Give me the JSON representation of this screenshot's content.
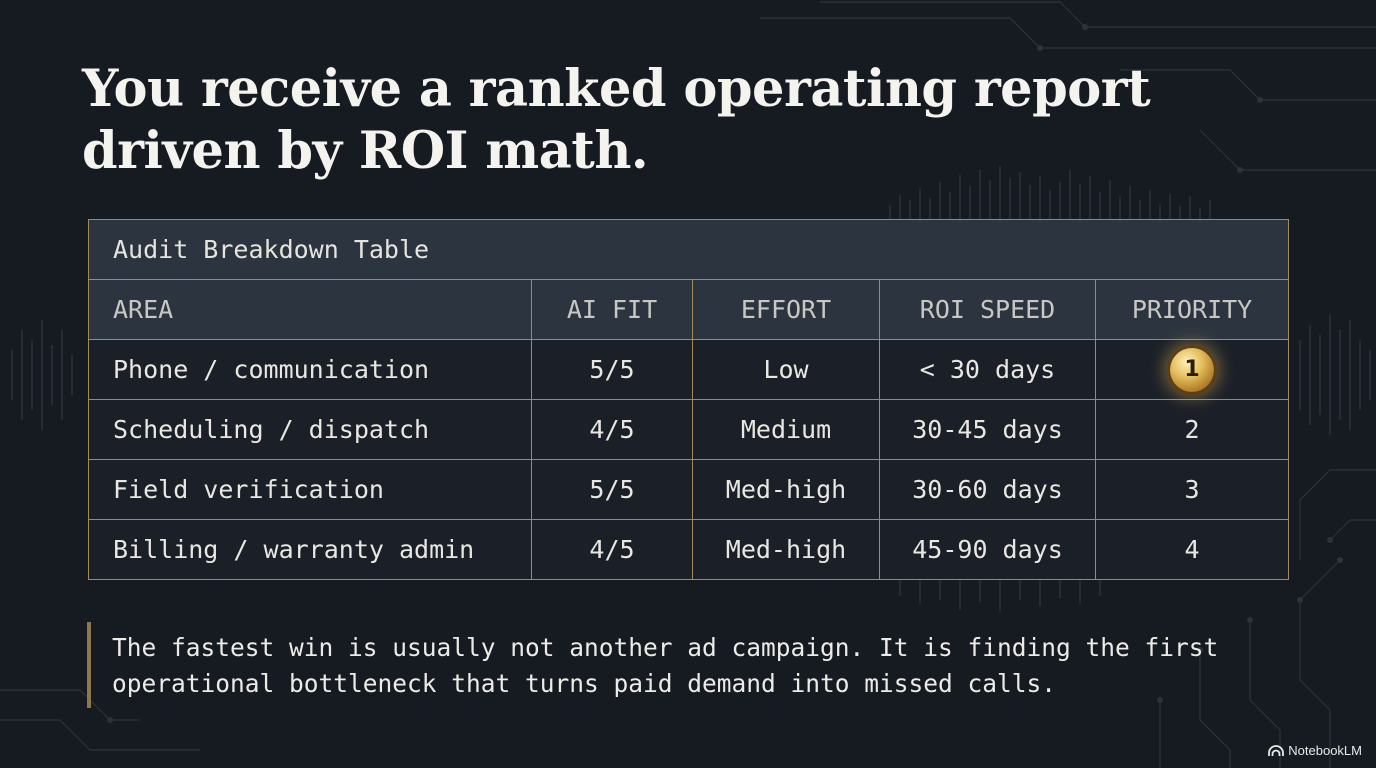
{
  "title": "You receive a ranked operating report driven by ROI math.",
  "table": {
    "caption": "Audit Breakdown Table",
    "columns": [
      "AREA",
      "AI FIT",
      "EFFORT",
      "ROI SPEED",
      "PRIORITY"
    ],
    "rows": [
      {
        "area": "Phone / communication",
        "ai_fit": "5/5",
        "effort": "Low",
        "roi_speed": "< 30 days",
        "priority": "1"
      },
      {
        "area": "Scheduling / dispatch",
        "ai_fit": "4/5",
        "effort": "Medium",
        "roi_speed": "30-45 days",
        "priority": "2"
      },
      {
        "area": "Field verification",
        "ai_fit": "5/5",
        "effort": "Med-high",
        "roi_speed": "30-60 days",
        "priority": "3"
      },
      {
        "area": "Billing / warranty admin",
        "ai_fit": "4/5",
        "effort": "Med-high",
        "roi_speed": "45-90 days",
        "priority": "4"
      }
    ]
  },
  "quote": "The fastest win is usually not another ad campaign. It is finding the first operational bottleneck that turns paid demand into missed calls.",
  "brand": {
    "label": "NotebookLM",
    "icon": "notebooklm-logo-icon"
  },
  "colors": {
    "background": "#161b22",
    "table_border": "#a38a5a",
    "header_fill": "#2c353f",
    "row_fill": "#1b2028",
    "medal_gold": "#d9ad4e",
    "quote_bar": "#8b7750"
  },
  "decor": {
    "circuit_icon": "circuit-lines-icon",
    "waveform_icon": "waveform-icon",
    "medal_icon": "gold-medal-icon"
  }
}
